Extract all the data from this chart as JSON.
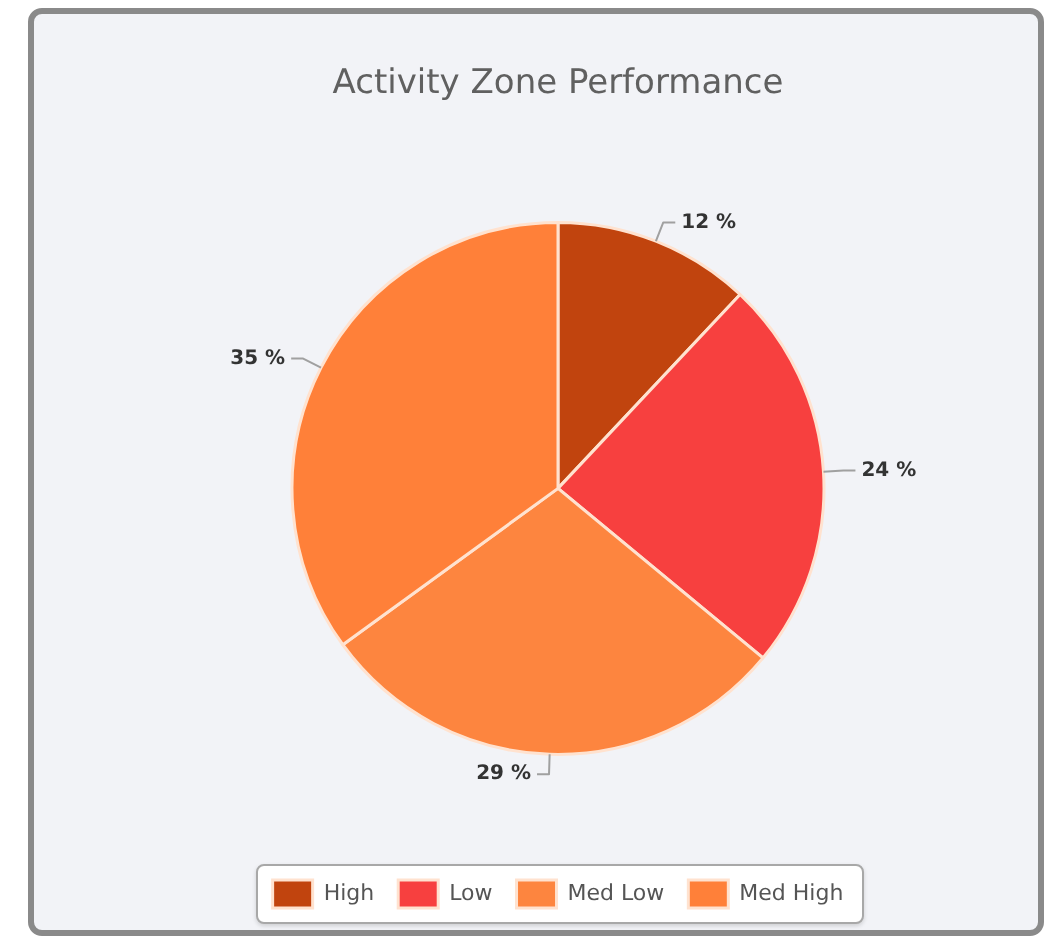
{
  "chart_data": {
    "type": "pie",
    "title": "Activity Zone Performance",
    "categories": [
      "High",
      "Low",
      "Med Low",
      "Med High"
    ],
    "values": [
      12,
      24,
      29,
      35
    ],
    "colors": [
      "#c1440e",
      "#f7403f",
      "#fd853f",
      "#ff8039"
    ],
    "value_labels": [
      "12 %",
      "24 %",
      "29 %",
      "35 %"
    ],
    "legend": "bottom"
  }
}
